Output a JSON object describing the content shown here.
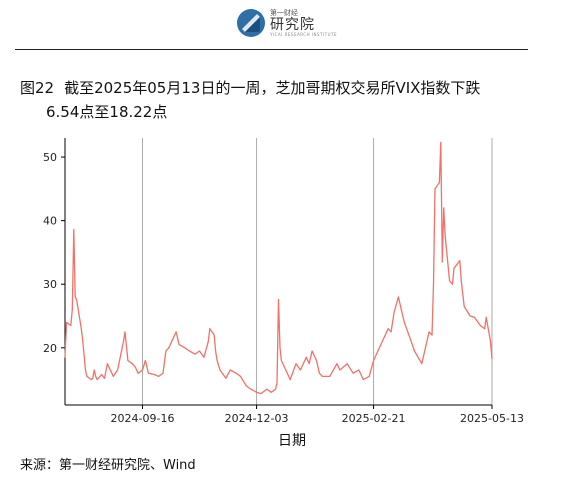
{
  "header": {
    "logo_top": "第一财经",
    "logo_main": "研究院",
    "logo_sub": "YICAI RESEARCH INSTITUTE"
  },
  "caption": {
    "figure_no": "图22",
    "line1": "截至2025年05月13日的一周，芝加哥期权交易所VIX指数下跌",
    "line2": "6.54点至18.22点"
  },
  "source": "来源：第一财经研究院、Wind",
  "colors": {
    "line": "#f07268",
    "grid": "#aaaaaa",
    "axis": "#000000"
  },
  "chart_data": {
    "type": "line",
    "xlabel": "日期",
    "ylabel": "",
    "title": "",
    "x_ticks": [
      "2024-09-16",
      "2024-12-03",
      "2025-02-21",
      "2025-05-13"
    ],
    "y_ticks": [
      20,
      30,
      40,
      50
    ],
    "xlim": [
      "2024-07-25",
      "2025-05-13"
    ],
    "ylim": [
      11,
      53
    ],
    "grid": "vertical",
    "series": [
      {
        "x": [
          "2024-07-25",
          "2024-07-26",
          "2024-07-29",
          "2024-07-30",
          "2024-07-31",
          "2024-08-01",
          "2024-08-02",
          "2024-08-05",
          "2024-08-06",
          "2024-08-07",
          "2024-08-08",
          "2024-08-09",
          "2024-08-12",
          "2024-08-13",
          "2024-08-14",
          "2024-08-15",
          "2024-08-16",
          "2024-08-19",
          "2024-08-21",
          "2024-08-23",
          "2024-08-27",
          "2024-08-30",
          "2024-09-03",
          "2024-09-04",
          "2024-09-06",
          "2024-09-09",
          "2024-09-11",
          "2024-09-13",
          "2024-09-16",
          "2024-09-18",
          "2024-09-20",
          "2024-09-24",
          "2024-09-27",
          "2024-09-30",
          "2024-10-02",
          "2024-10-04",
          "2024-10-07",
          "2024-10-09",
          "2024-10-11",
          "2024-10-15",
          "2024-10-18",
          "2024-10-22",
          "2024-10-25",
          "2024-10-28",
          "2024-10-31",
          "2024-11-01",
          "2024-11-04",
          "2024-11-05",
          "2024-11-06",
          "2024-11-08",
          "2024-11-12",
          "2024-11-15",
          "2024-11-19",
          "2024-11-22",
          "2024-11-26",
          "2024-11-29",
          "2024-12-03",
          "2024-12-06",
          "2024-12-10",
          "2024-12-13",
          "2024-12-16",
          "2024-12-17",
          "2024-12-18",
          "2024-12-19",
          "2024-12-20",
          "2024-12-23",
          "2024-12-26",
          "2024-12-30",
          "2025-01-02",
          "2025-01-06",
          "2025-01-08",
          "2025-01-10",
          "2025-01-13",
          "2025-01-15",
          "2025-01-17",
          "2025-01-22",
          "2025-01-27",
          "2025-01-29",
          "2025-02-03",
          "2025-02-07",
          "2025-02-11",
          "2025-02-14",
          "2025-02-18",
          "2025-02-21",
          "2025-02-24",
          "2025-02-27",
          "2025-03-03",
          "2025-03-05",
          "2025-03-07",
          "2025-03-10",
          "2025-03-12",
          "2025-03-14",
          "2025-03-18",
          "2025-03-21",
          "2025-03-26",
          "2025-03-31",
          "2025-04-02",
          "2025-04-03",
          "2025-04-04",
          "2025-04-07",
          "2025-04-08",
          "2025-04-09",
          "2025-04-10",
          "2025-04-11",
          "2025-04-14",
          "2025-04-16",
          "2025-04-17",
          "2025-04-21",
          "2025-04-22",
          "2025-04-24",
          "2025-04-28",
          "2025-05-01",
          "2025-05-05",
          "2025-05-08",
          "2025-05-09",
          "2025-05-12",
          "2025-05-13"
        ],
        "values": [
          18.5,
          24.0,
          23.5,
          26.0,
          38.6,
          28.0,
          27.5,
          23.2,
          21.5,
          19.0,
          16.5,
          15.5,
          15.0,
          15.2,
          16.5,
          15.5,
          15.0,
          15.8,
          15.2,
          17.5,
          15.5,
          16.5,
          21.0,
          22.5,
          18.0,
          17.5,
          17.0,
          16.0,
          16.5,
          18.0,
          16.0,
          15.8,
          15.5,
          16.0,
          19.5,
          20.0,
          21.5,
          22.5,
          20.5,
          20.0,
          19.5,
          19.0,
          19.5,
          18.5,
          21.0,
          23.0,
          22.0,
          19.5,
          18.0,
          16.5,
          15.2,
          16.5,
          16.0,
          15.5,
          14.0,
          13.5,
          13.0,
          12.8,
          13.5,
          13.0,
          13.5,
          14.5,
          27.6,
          20.0,
          18.0,
          16.5,
          15.0,
          17.5,
          16.5,
          18.5,
          17.5,
          19.5,
          18.0,
          16.0,
          15.5,
          15.5,
          17.5,
          16.5,
          17.5,
          16.0,
          16.5,
          15.0,
          15.5,
          18.0,
          19.5,
          21.0,
          23.0,
          22.5,
          25.5,
          28.0,
          26.0,
          24.0,
          21.5,
          19.5,
          17.5,
          22.5,
          22.0,
          30.0,
          45.0,
          46.0,
          52.3,
          33.5,
          42.0,
          37.5,
          30.5,
          30.0,
          32.5,
          33.7,
          30.5,
          26.5,
          25.0,
          24.8,
          23.5,
          23.0,
          24.8,
          21.0,
          18.2
        ]
      }
    ]
  }
}
